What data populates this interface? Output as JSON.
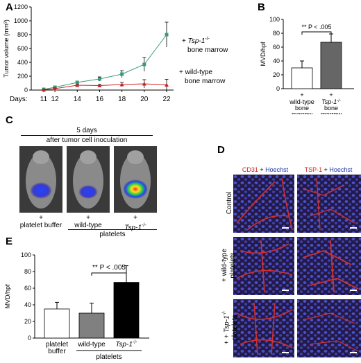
{
  "panels": {
    "A": "A",
    "B": "B",
    "C": "C",
    "D": "D",
    "E": "E"
  },
  "colors": {
    "tsp_series": "#3a9a7a",
    "wt_series": "#cc2222",
    "bar_white": "#ffffff",
    "bar_gray": "#808080",
    "bar_dark": "#666666",
    "bar_black": "#000000",
    "cd31_label": "#cc2222",
    "hoechst_label": "#2233aa"
  },
  "chart_data": [
    {
      "type": "line",
      "panel": "A",
      "ylabel": "Tumor volume (mm³)",
      "xlabel_prefix": "Days:",
      "x": [
        11,
        12,
        14,
        16,
        18,
        20,
        22
      ],
      "ylim": [
        0,
        1200
      ],
      "yticks": [
        0,
        200,
        400,
        600,
        800,
        1000,
        1200
      ],
      "series": [
        {
          "name": "Tsp-1-/- bone marrow",
          "label_line1": "+ Tsp-1",
          "label_sup": "-/-",
          "label_line2": "bone marrow",
          "values": [
            10,
            40,
            110,
            160,
            230,
            370,
            800
          ],
          "errors": [
            5,
            10,
            20,
            30,
            50,
            100,
            180
          ]
        },
        {
          "name": "wild-type bone marrow",
          "label_line1": "+ wild-type",
          "label_line2": "bone marrow",
          "values": [
            5,
            20,
            70,
            65,
            80,
            90,
            75
          ],
          "errors": [
            3,
            10,
            15,
            20,
            30,
            60,
            80
          ]
        }
      ]
    },
    {
      "type": "bar",
      "panel": "B",
      "ylabel": "MVD/hpf",
      "ylim": [
        0,
        100
      ],
      "yticks": [
        0,
        20,
        40,
        60,
        80,
        100
      ],
      "categories": [
        "wild-type bone marrow",
        "Tsp-1-/- bone marrow"
      ],
      "values": [
        30,
        67
      ],
      "errors": [
        10,
        12
      ],
      "significance": "** P < .005",
      "cat_labels": [
        {
          "plus": "+",
          "lines": [
            "wild-type",
            "bone",
            "marrow"
          ]
        },
        {
          "plus": "+",
          "italic": "Tsp-1",
          "sup": "-/-",
          "lines": [
            "bone",
            "marrow"
          ]
        }
      ]
    },
    {
      "type": "bar",
      "panel": "E",
      "ylabel": "MVD/hpf",
      "ylim": [
        0,
        100
      ],
      "yticks": [
        0,
        20,
        40,
        60,
        80,
        100
      ],
      "categories": [
        "platelet buffer",
        "wild-type",
        "Tsp-1-/-"
      ],
      "values": [
        35,
        30,
        67
      ],
      "errors": [
        8,
        12,
        20
      ],
      "significance": "** P < .005",
      "group_label": "platelets",
      "cat_labels": [
        [
          "platelet",
          "buffer"
        ],
        [
          "wild-type"
        ],
        [
          "Tsp-1",
          "-/-"
        ]
      ]
    }
  ],
  "panel_c": {
    "title_line1": "5 days",
    "title_line2": "after tumor cell inoculation",
    "labels": [
      "+",
      "+",
      "+"
    ],
    "label_platelet_buffer": "platelet buffer",
    "label_wild_type": "wild-type",
    "label_tsp": "Tsp-1",
    "label_tsp_sup": "-/-",
    "group_label": "platelets"
  },
  "panel_d": {
    "col1_a": "CD31",
    "col1_b": " + ",
    "col1_c": "Hoechst",
    "col2_a": "TSP-1",
    "col2_b": " + ",
    "col2_c": "Hoechst",
    "row1": "Control",
    "row2_a": "+ wild-type",
    "row2_b": "platelets",
    "row3_a": "+ Tsp-1",
    "row3_sup": "-/-",
    "row3_b": "platelets"
  }
}
